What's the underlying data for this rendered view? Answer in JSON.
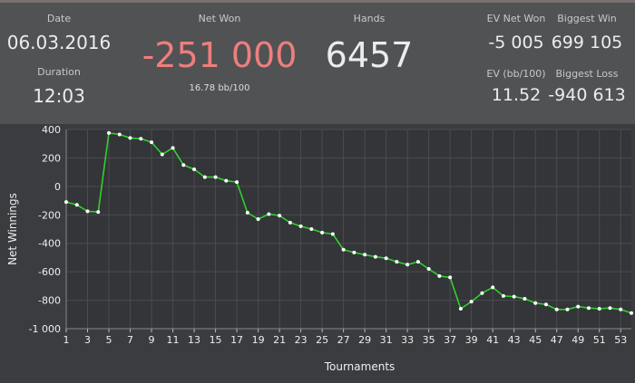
{
  "stats": {
    "date_label": "Date",
    "date_value": "06.03.2016",
    "duration_label": "Duration",
    "duration_value": "12:03",
    "net_won_label": "Net Won",
    "net_won_value": "-251 000",
    "net_won_sub": "16.78 bb/100",
    "hands_label": "Hands",
    "hands_value": "6457",
    "ev_net_won_label": "EV Net Won",
    "ev_net_won_value": "-5 005",
    "ev_bb100_label": "EV (bb/100)",
    "ev_bb100_value": "11.52",
    "biggest_win_label": "Biggest Win",
    "biggest_win_value": "699 105",
    "biggest_loss_label": "Biggest Loss",
    "biggest_loss_value": "-940 613"
  },
  "colors": {
    "net_won": "#ee7e7e",
    "line": "#2ed12e",
    "point": "#ffffff"
  },
  "chart_data": {
    "type": "line",
    "xlabel": "Tournaments",
    "ylabel": "Net Winnings",
    "xlim": [
      1,
      54
    ],
    "ylim": [
      -1000,
      400
    ],
    "xticks": [
      "1",
      "3",
      "5",
      "7",
      "9",
      "11",
      "13",
      "15",
      "17",
      "19",
      "21",
      "23",
      "25",
      "27",
      "29",
      "31",
      "33",
      "35",
      "37",
      "39",
      "41",
      "43",
      "45",
      "47",
      "49",
      "51",
      "53"
    ],
    "yticks": [
      "400",
      "200",
      "0",
      "-200",
      "-400",
      "-600",
      "-800",
      "-1 000"
    ],
    "grid": true,
    "series": [
      {
        "x": [
          1,
          2,
          3,
          4,
          5,
          6,
          7,
          8,
          9,
          10,
          11,
          12,
          13,
          14,
          15,
          16,
          17,
          18,
          19,
          20,
          21,
          22,
          23,
          24,
          25,
          26,
          27,
          28,
          29,
          30,
          31,
          32,
          33,
          34,
          35,
          36,
          37,
          38,
          39,
          40,
          41,
          42,
          43,
          44,
          45,
          46,
          47,
          48,
          49,
          50,
          51,
          52,
          53,
          54
        ],
        "values": [
          -110,
          -130,
          -175,
          -180,
          375,
          365,
          340,
          335,
          310,
          225,
          270,
          150,
          120,
          65,
          65,
          40,
          30,
          -185,
          -230,
          -195,
          -205,
          -255,
          -280,
          -300,
          -325,
          -335,
          -445,
          -465,
          -480,
          -495,
          -505,
          -530,
          -550,
          -530,
          -580,
          -630,
          -640,
          -860,
          -810,
          -750,
          -710,
          -770,
          -775,
          -790,
          -820,
          -830,
          -865,
          -865,
          -845,
          -855,
          -860,
          -855,
          -865,
          -890
        ]
      }
    ]
  }
}
